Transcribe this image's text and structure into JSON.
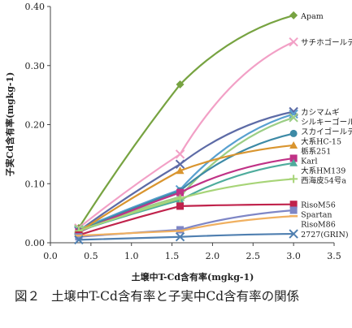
{
  "chart_data": {
    "type": "line",
    "xlabel": "土壌中T-Cd含有率(mgkg-1)",
    "ylabel": "子実Cd含有率(mgkg-1)",
    "xlim": [
      0.0,
      3.5
    ],
    "ylim": [
      0.0,
      0.4
    ],
    "x_ticks": [
      "0.0",
      "0.5",
      "1.0",
      "1.5",
      "2.0",
      "2.5",
      "3.0",
      "3.5"
    ],
    "y_ticks": [
      "0.00",
      "0.10",
      "0.20",
      "0.30",
      "0.40"
    ],
    "x": [
      0.35,
      1.6,
      3.0
    ],
    "grid": false,
    "legend": "labels at line ends (right)",
    "series": [
      {
        "name": "Apam",
        "values": [
          0.025,
          0.268,
          0.385
        ],
        "color": "#77a341",
        "marker": "diamond"
      },
      {
        "name": "サチホゴールデン",
        "values": [
          0.025,
          0.15,
          0.34
        ],
        "color": "#f2a0c6",
        "marker": "x"
      },
      {
        "name": "カシマムギ",
        "values": [
          0.02,
          0.133,
          0.222
        ],
        "color": "#5d6ba6",
        "marker": "x"
      },
      {
        "name": "シルキーゴールデン",
        "values": [
          0.022,
          0.09,
          0.218
        ],
        "color": "#58a0d0",
        "marker": "x"
      },
      {
        "name": "スカイゴールデン",
        "values": [
          0.023,
          0.078,
          0.212
        ],
        "color": "#9bce85",
        "marker": "x"
      },
      {
        "name": "大系HC-15",
        "values": [
          0.02,
          0.088,
          0.185
        ],
        "color": "#3d8aa6",
        "marker": "circle"
      },
      {
        "name": "栃系251",
        "values": [
          0.018,
          0.122,
          0.165
        ],
        "color": "#d9952f",
        "marker": "triangle"
      },
      {
        "name": "Karl",
        "values": [
          0.018,
          0.085,
          0.143
        ],
        "color": "#c03286",
        "marker": "square"
      },
      {
        "name": "大系HM139",
        "values": [
          0.02,
          0.072,
          0.135
        ],
        "color": "#4eac9c",
        "marker": "triangle"
      },
      {
        "name": "西海皮54号a",
        "values": [
          0.02,
          0.075,
          0.108
        ],
        "color": "#a7d477",
        "marker": "plus"
      },
      {
        "name": "RisoM56",
        "values": [
          0.013,
          0.062,
          0.065
        ],
        "color": "#c0224b",
        "marker": "square"
      },
      {
        "name": "Spartan",
        "values": [
          0.01,
          0.022,
          0.055
        ],
        "color": "#7e86c6",
        "marker": "square"
      },
      {
        "name": "RisoM86",
        "values": [
          0.012,
          0.02,
          0.045
        ],
        "color": "#f0b060",
        "marker": "dash"
      },
      {
        "name": "2727(GRIN)",
        "values": [
          0.005,
          0.01,
          0.015
        ],
        "color": "#4f7fb0",
        "marker": "x"
      }
    ]
  },
  "caption": {
    "figure_no": "図２",
    "text": "土壌中T-Cd含有率と子実中Cd含有率の関係"
  }
}
